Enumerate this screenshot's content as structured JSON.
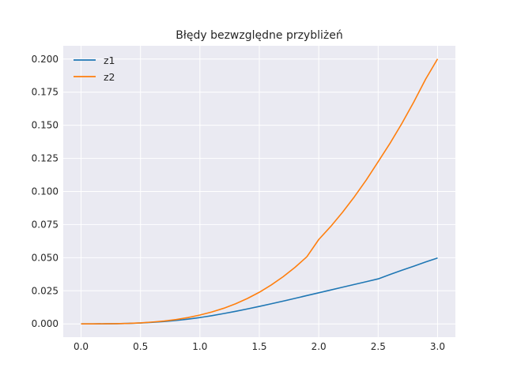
{
  "chart_data": {
    "type": "line",
    "title": "Błędy bezwzględne przybliżeń",
    "xlabel": "",
    "ylabel": "",
    "xlim": [
      -0.15,
      3.15
    ],
    "ylim": [
      -0.01,
      0.21
    ],
    "xticks": [
      0.0,
      0.5,
      1.0,
      1.5,
      2.0,
      2.5,
      3.0
    ],
    "xtick_labels": [
      "0.0",
      "0.5",
      "1.0",
      "1.5",
      "2.0",
      "2.5",
      "3.0"
    ],
    "yticks": [
      0.0,
      0.025,
      0.05,
      0.075,
      0.1,
      0.125,
      0.15,
      0.175,
      0.2
    ],
    "ytick_labels": [
      "0.000",
      "0.025",
      "0.050",
      "0.075",
      "0.100",
      "0.125",
      "0.150",
      "0.175",
      "0.200"
    ],
    "grid": true,
    "legend_position": "top-left",
    "background": "#eaeaf2",
    "grid_color": "#ffffff",
    "x": [
      0.0,
      0.1,
      0.2,
      0.3,
      0.4,
      0.5,
      0.6,
      0.7,
      0.8,
      0.9,
      1.0,
      1.1,
      1.2,
      1.3,
      1.4,
      1.5,
      1.6,
      1.7,
      1.8,
      1.9,
      2.0,
      2.1,
      2.2,
      2.3,
      2.4,
      2.5,
      2.6,
      2.7,
      2.8,
      2.9,
      3.0
    ],
    "series": [
      {
        "name": "z1",
        "color": "#1f77b4",
        "values": [
          0.0,
          0.0,
          0.0001,
          0.0002,
          0.0004,
          0.0007,
          0.0012,
          0.0018,
          0.0026,
          0.0036,
          0.0048,
          0.0062,
          0.0078,
          0.0095,
          0.0113,
          0.0132,
          0.0152,
          0.0172,
          0.0193,
          0.0214,
          0.0235,
          0.0256,
          0.0277,
          0.0298,
          0.0319,
          0.034,
          0.0373,
          0.0405,
          0.0436,
          0.0468,
          0.0498
        ]
      },
      {
        "name": "z2",
        "color": "#ff7f0e",
        "values": [
          0.0,
          0.0,
          0.0001,
          0.0002,
          0.0004,
          0.0008,
          0.0014,
          0.0022,
          0.0033,
          0.0048,
          0.0067,
          0.009,
          0.0118,
          0.0152,
          0.0192,
          0.0239,
          0.0294,
          0.0356,
          0.0427,
          0.0507,
          0.0637,
          0.0735,
          0.0843,
          0.096,
          0.1087,
          0.1225,
          0.1364,
          0.1514,
          0.1676,
          0.1849,
          0.2001
        ]
      }
    ]
  }
}
